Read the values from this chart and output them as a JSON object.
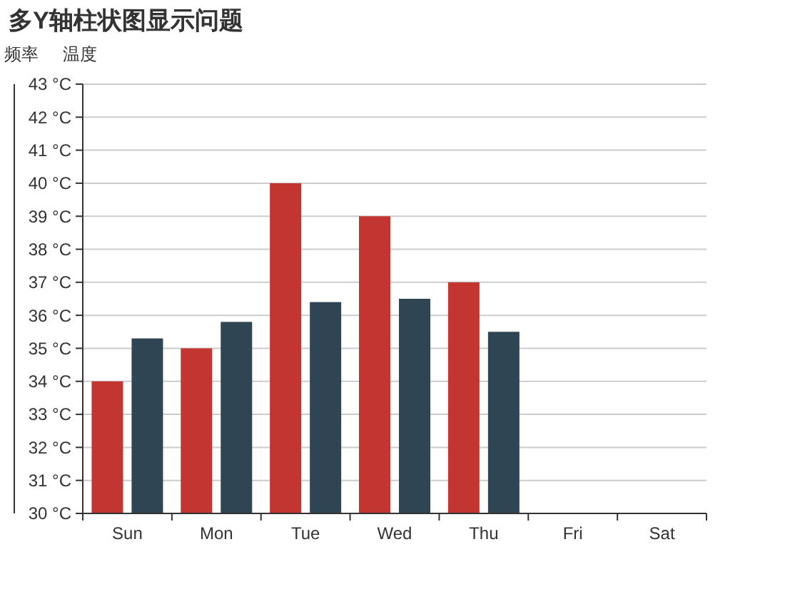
{
  "chart_data": {
    "type": "bar",
    "title": "多Y轴柱状图显示问题",
    "ylabel": "温度",
    "y2label": "频率",
    "categories": [
      "Sun",
      "Mon",
      "Tue",
      "Wed",
      "Thu",
      "Fri",
      "Sat"
    ],
    "series": [
      {
        "color": "#c23531",
        "values": [
          34,
          35,
          40,
          39,
          37,
          null,
          null
        ]
      },
      {
        "color": "#2f4554",
        "values": [
          35.3,
          35.8,
          36.4,
          36.5,
          35.5,
          null,
          null
        ]
      }
    ],
    "ylim": [
      30,
      43
    ],
    "yticks": [
      {
        "value": 30,
        "label": "30 °C"
      },
      {
        "value": 31,
        "label": "31 °C"
      },
      {
        "value": 32,
        "label": "32 °C"
      },
      {
        "value": 33,
        "label": "33 °C"
      },
      {
        "value": 34,
        "label": "34 °C"
      },
      {
        "value": 35,
        "label": "35 °C"
      },
      {
        "value": 36,
        "label": "36 °C"
      },
      {
        "value": 37,
        "label": "37 °C"
      },
      {
        "value": 38,
        "label": "38 °C"
      },
      {
        "value": 39,
        "label": "39 °C"
      },
      {
        "value": 40,
        "label": "40 °C"
      },
      {
        "value": 41,
        "label": "41 °C"
      },
      {
        "value": 42,
        "label": "42 °C"
      },
      {
        "value": 43,
        "label": "43 °C"
      }
    ],
    "grid": true
  }
}
